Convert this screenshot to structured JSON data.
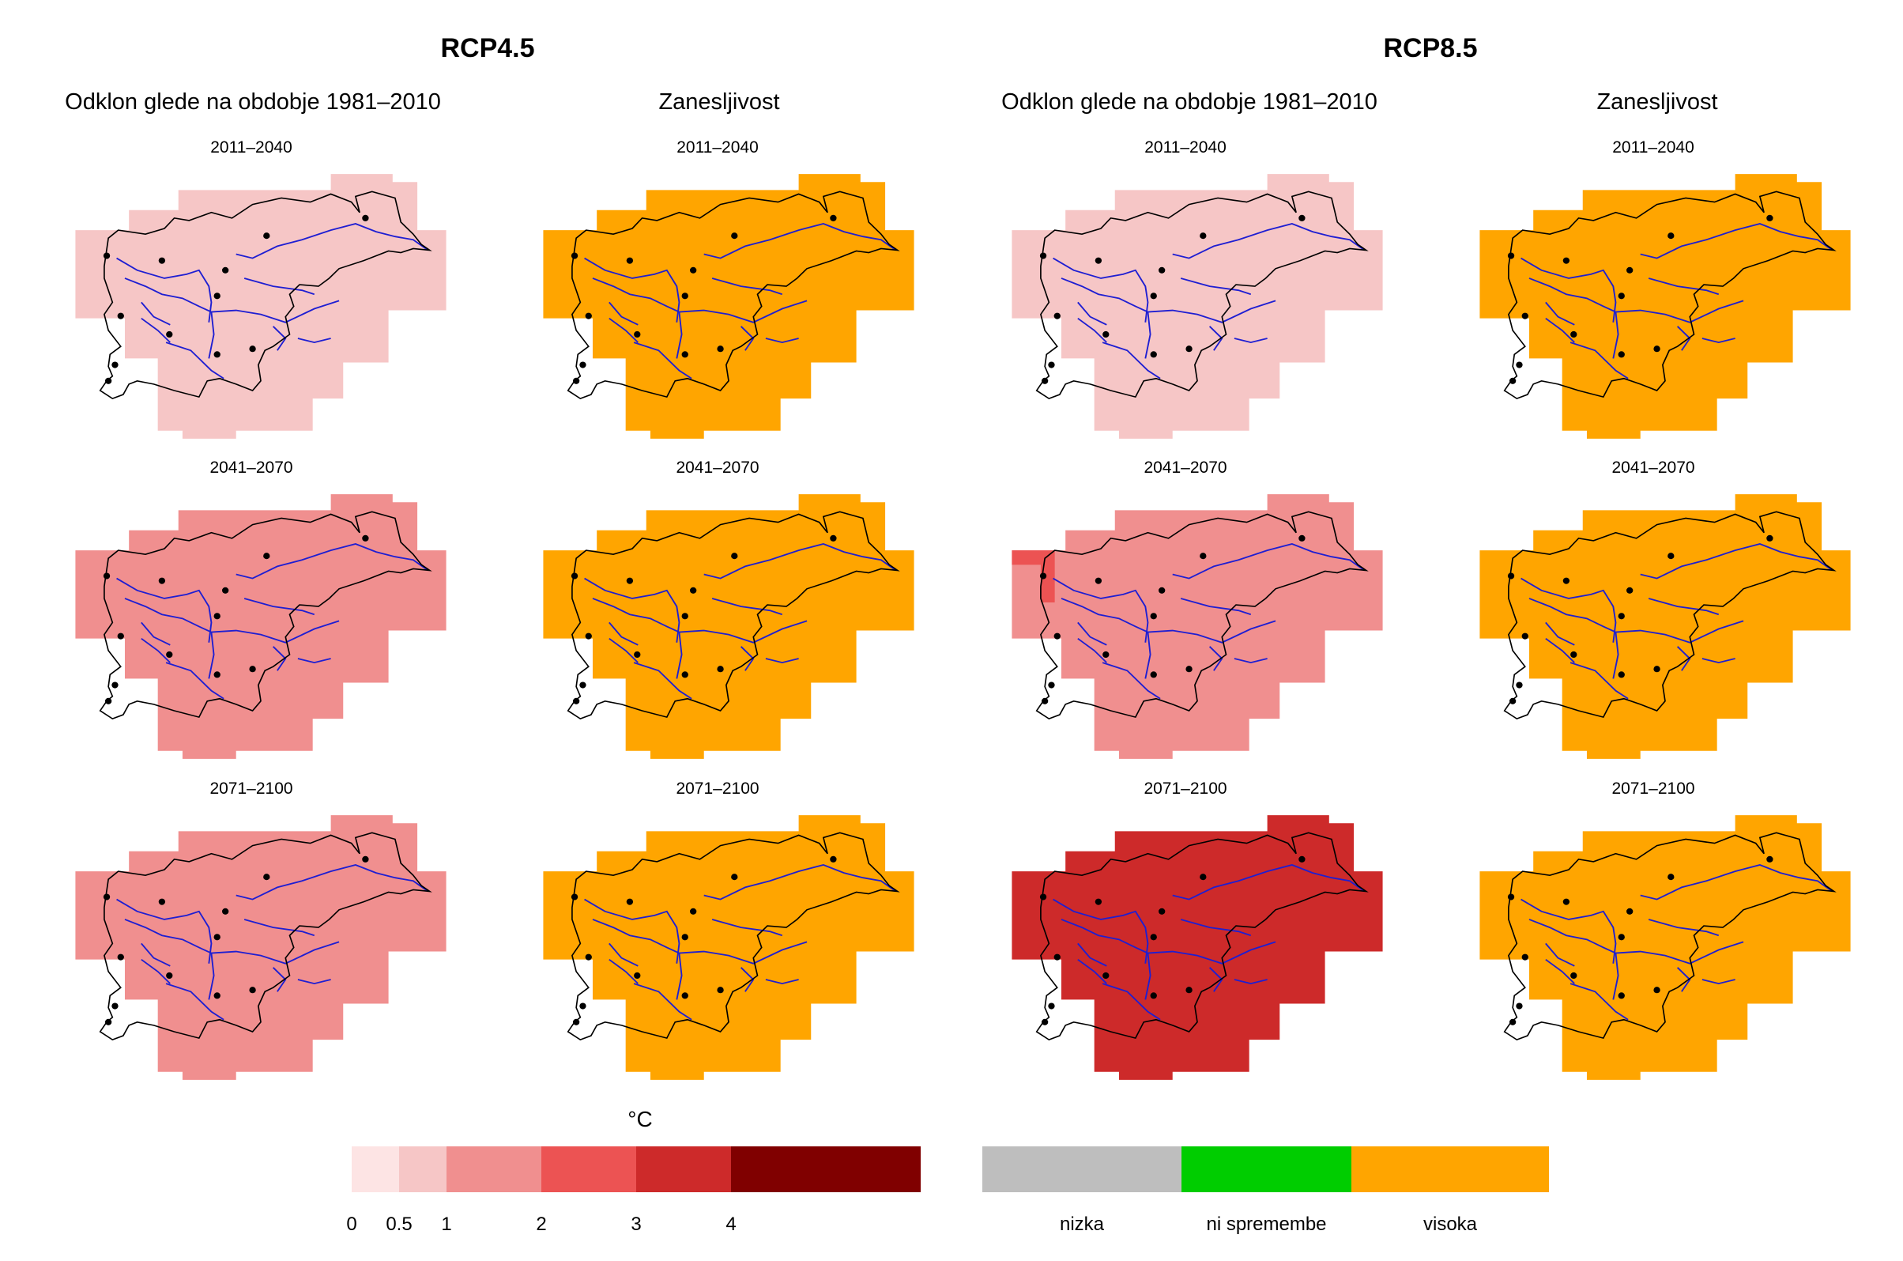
{
  "scenarios": [
    {
      "title": "RCP4.5",
      "col_deviation": "Odklon glede na obdobje 1981–2010",
      "col_reliability": "Zanesljivost"
    },
    {
      "title": "RCP8.5",
      "col_deviation": "Odklon glede na obdobje 1981–2010",
      "col_reliability": "Zanesljivost"
    }
  ],
  "periods": [
    "2011–2040",
    "2041–2070",
    "2071–2100"
  ],
  "maps": {
    "rcp45_dev": [
      {
        "bin": "0.5–1",
        "color": "#f6c6c6"
      },
      {
        "bin": "1–2",
        "color": "#f08f8f"
      },
      {
        "bin": "1–2",
        "color": "#f08f8f"
      }
    ],
    "rcp45_rel": [
      {
        "category": "visoka",
        "color": "#ffa500"
      },
      {
        "category": "visoka",
        "color": "#ffa500"
      },
      {
        "category": "visoka",
        "color": "#ffa500"
      }
    ],
    "rcp85_dev": [
      {
        "bin": "0.5–1",
        "color": "#f6c6c6"
      },
      {
        "bin": "1–2",
        "color": "#f08f8f",
        "nw_cell_bin": "2–3",
        "nw_cell_color": "#ec5353"
      },
      {
        "bin": "3–4",
        "color": "#cd2a2a"
      }
    ],
    "rcp85_rel": [
      {
        "category": "visoka",
        "color": "#ffa500"
      },
      {
        "category": "visoka",
        "color": "#ffa500"
      },
      {
        "category": "visoka",
        "color": "#ffa500"
      }
    ]
  },
  "temp_legend": {
    "unit": "°C",
    "ticks": [
      "0",
      "0.5",
      "1",
      "2",
      "3",
      "4"
    ],
    "bins": [
      {
        "from": 0,
        "to": 0.5,
        "color": "#fde4e4"
      },
      {
        "from": 0.5,
        "to": 1,
        "color": "#f6c6c6"
      },
      {
        "from": 1,
        "to": 2,
        "color": "#f08f8f"
      },
      {
        "from": 2,
        "to": 3,
        "color": "#ec5353"
      },
      {
        "from": 3,
        "to": 4,
        "color": "#cd2a2a"
      },
      {
        "from": 4,
        "to": null,
        "color": "#800000"
      }
    ]
  },
  "reliability_legend": {
    "categories": [
      {
        "label": "nizka",
        "color": "#bebebe"
      },
      {
        "label": "ni spremembe",
        "color": "#00cd00"
      },
      {
        "label": "visoka",
        "color": "#ffa500"
      }
    ]
  },
  "outline_color": "#000000",
  "river_color": "#1e1ed2"
}
